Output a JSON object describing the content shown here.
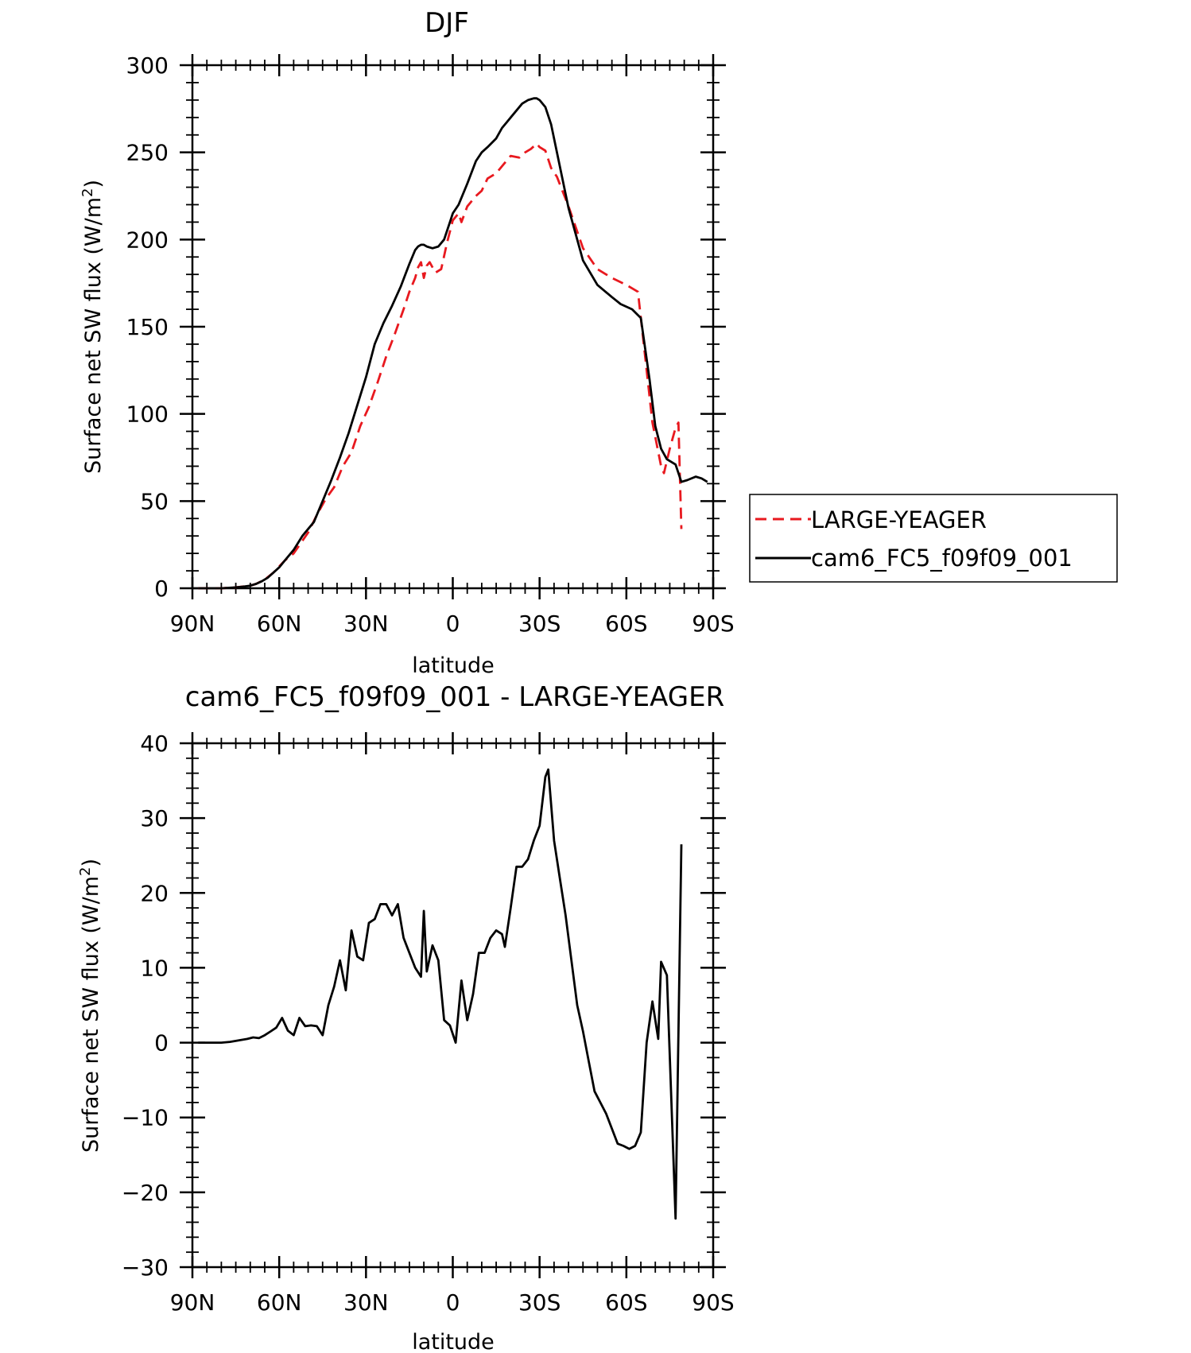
{
  "chart_data": [
    {
      "type": "line",
      "title": "DJF",
      "xlabel": "latitude",
      "ylabel": "Surface net SW flux (W/m",
      "ylabel_sup": "2",
      "ylabel_end": ")",
      "xlim": [
        90,
        -90
      ],
      "ylim": [
        0,
        300
      ],
      "xticks": [
        {
          "value": 90,
          "label": "90N"
        },
        {
          "value": 60,
          "label": "60N"
        },
        {
          "value": 30,
          "label": "30N"
        },
        {
          "value": 0,
          "label": "0"
        },
        {
          "value": -30,
          "label": "30S"
        },
        {
          "value": -60,
          "label": "60S"
        },
        {
          "value": -90,
          "label": "90S"
        }
      ],
      "yticks": [
        0,
        50,
        100,
        150,
        200,
        250,
        300
      ],
      "legend_position": "right",
      "series": [
        {
          "name": "LARGE-YEAGER",
          "color": "#e8191f",
          "dash": "dashed",
          "x": [
            88,
            80,
            75,
            70,
            68,
            65,
            62,
            58,
            55,
            50,
            47,
            44,
            41,
            38,
            35,
            32,
            29,
            26,
            23,
            20,
            17,
            15,
            13,
            12,
            11,
            10,
            9,
            8,
            6,
            4,
            2,
            0,
            -2,
            -3,
            -5,
            -8,
            -10,
            -12,
            -15,
            -18,
            -20,
            -23,
            -25,
            -27,
            -29,
            -30,
            -32,
            -34,
            -36,
            -40,
            -45,
            -50,
            -55,
            -60,
            -64,
            -66,
            -69,
            -72,
            -73,
            -75,
            -77,
            -78,
            -79
          ],
          "y": [
            0,
            0,
            0.5,
            1.5,
            2.5,
            5,
            9,
            16,
            20,
            32,
            42,
            51,
            58,
            70,
            78,
            93,
            104,
            118,
            133,
            146,
            160,
            170,
            178,
            184,
            187,
            178,
            185,
            187,
            181,
            183,
            198,
            211,
            215,
            210,
            219,
            225,
            228,
            235,
            238,
            244,
            248,
            247,
            250,
            252,
            255,
            253,
            251,
            241,
            236,
            219,
            195,
            183,
            178,
            174,
            170,
            140,
            95,
            70,
            66,
            80,
            92,
            95,
            34
          ]
        },
        {
          "name": "cam6_FC5_f09f09_001",
          "color": "#000000",
          "dash": "solid",
          "x": [
            88,
            80,
            75,
            72,
            70,
            68,
            66,
            64,
            62,
            60,
            58,
            55,
            52,
            48,
            45,
            42,
            39,
            36,
            33,
            30,
            27,
            24,
            21,
            18,
            15,
            13,
            12,
            11,
            10,
            9,
            7,
            5,
            3,
            1,
            0,
            -2,
            -5,
            -8,
            -10,
            -12,
            -15,
            -17,
            -20,
            -24,
            -26,
            -28,
            -29,
            -30,
            -32,
            -34,
            -36,
            -40,
            -45,
            -50,
            -55,
            -58,
            -62,
            -65,
            -68,
            -70,
            -72,
            -74,
            -77,
            -79,
            -81,
            -84,
            -86,
            -88
          ],
          "y": [
            0,
            0,
            0.5,
            1,
            1.5,
            2.5,
            4,
            6,
            9,
            12,
            16,
            22,
            30,
            38,
            50,
            62,
            75,
            89,
            105,
            121,
            140,
            152,
            162,
            173,
            186,
            194,
            196,
            197,
            197,
            196,
            195,
            196,
            200,
            210,
            215,
            220,
            232,
            245,
            250,
            253,
            258,
            264,
            270,
            278,
            280,
            281,
            281,
            280,
            276,
            266,
            250,
            218,
            188,
            174,
            167,
            163,
            160,
            155,
            120,
            93,
            80,
            74,
            71,
            61,
            62,
            64,
            63,
            61
          ]
        }
      ]
    },
    {
      "type": "line",
      "title": "cam6_FC5_f09f09_001 - LARGE-YEAGER",
      "xlabel": "latitude",
      "ylabel": "Surface net SW flux (W/m",
      "ylabel_sup": "2",
      "ylabel_end": ")",
      "xlim": [
        90,
        -90
      ],
      "ylim": [
        -30,
        40
      ],
      "xticks": [
        {
          "value": 90,
          "label": "90N"
        },
        {
          "value": 60,
          "label": "60N"
        },
        {
          "value": 30,
          "label": "30N"
        },
        {
          "value": 0,
          "label": "0"
        },
        {
          "value": -30,
          "label": "30S"
        },
        {
          "value": -60,
          "label": "60S"
        },
        {
          "value": -90,
          "label": "90S"
        }
      ],
      "yticks": [
        -30,
        -20,
        -10,
        0,
        10,
        20,
        30,
        40
      ],
      "series": [
        {
          "color": "#000000",
          "dash": "solid",
          "x": [
            88,
            80,
            77,
            74,
            71,
            69,
            67,
            65,
            63,
            61,
            59,
            57,
            55,
            53,
            51,
            49,
            47,
            45,
            43,
            41,
            39,
            37,
            35,
            33,
            31,
            29,
            27,
            25,
            23,
            21,
            19,
            17,
            15,
            13,
            11,
            10,
            9,
            7,
            5,
            3,
            1,
            -1,
            -3,
            -5,
            -7,
            -9,
            -11,
            -13,
            -15,
            -17,
            -18,
            -20,
            -22,
            -24,
            -26,
            -28,
            -30,
            -32,
            -33,
            -35,
            -37,
            -39,
            -41,
            -43,
            -45,
            -47,
            -49,
            -51,
            -53,
            -55,
            -57,
            -59,
            -61,
            -63,
            -65,
            -67,
            -69,
            -71,
            -72,
            -74,
            -77,
            -79
          ],
          "y": [
            0,
            0,
            0.1,
            0.3,
            0.5,
            0.7,
            0.6,
            1,
            1.5,
            2,
            3.3,
            1.6,
            1,
            3.3,
            2.2,
            2.3,
            2.2,
            1,
            5,
            7.5,
            11,
            7,
            15,
            11.5,
            11,
            16,
            16.5,
            18.5,
            18.5,
            17,
            18.5,
            14,
            12,
            10,
            8.8,
            17.6,
            9.5,
            13,
            11,
            3,
            2.3,
            0,
            8.3,
            3,
            6.5,
            12,
            12,
            14,
            15,
            14.5,
            12.8,
            18,
            23.5,
            23.5,
            24.5,
            27,
            29,
            35.5,
            36.5,
            27,
            22,
            17,
            11,
            5,
            1.5,
            -2.5,
            -6.5,
            -8,
            -9.5,
            -11.5,
            -13.5,
            -13.8,
            -14.2,
            -13.8,
            -12,
            0,
            5.5,
            0.5,
            10.8,
            9,
            -23.5,
            26.5
          ]
        }
      ]
    }
  ]
}
